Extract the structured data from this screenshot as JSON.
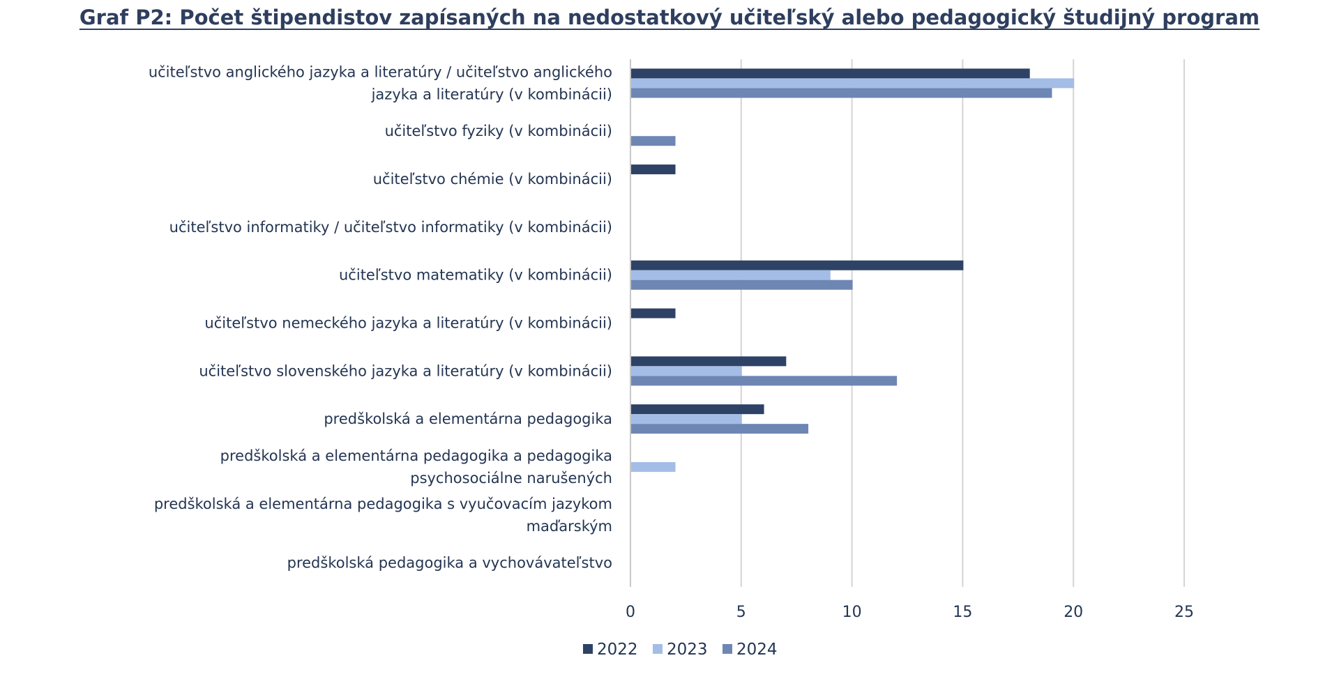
{
  "chart_data": {
    "type": "bar",
    "orientation": "horizontal",
    "title": "Graf P2: Počet štipendistov zapísaných na nedostatkový učiteľský alebo pedagogický študijný program",
    "categories": [
      [
        "učiteľstvo anglického jazyka a literatúry / učiteľstvo anglického",
        "jazyka a literatúry (v kombinácii)"
      ],
      [
        "učiteľstvo fyziky (v kombinácii)"
      ],
      [
        "učiteľstvo chémie (v kombinácii)"
      ],
      [
        "učiteľstvo informatiky / učiteľstvo informatiky (v kombinácii)"
      ],
      [
        "učiteľstvo matematiky (v kombinácii)"
      ],
      [
        "učiteľstvo nemeckého jazyka a literatúry (v kombinácii)"
      ],
      [
        "učiteľstvo slovenského jazyka a literatúry (v kombinácii)"
      ],
      [
        "predškolská a elementárna pedagogika"
      ],
      [
        "predškolská a elementárna pedagogika a pedagogika",
        "psychosociálne narušených"
      ],
      [
        "predškolská a elementárna pedagogika s vyučovacím jazykom",
        "maďarským"
      ],
      [
        "predškolská pedagogika a vychovávateľstvo"
      ]
    ],
    "series": [
      {
        "name": "2022",
        "color": "#2e4266",
        "values": [
          18,
          0,
          2,
          0,
          15,
          2,
          7,
          6,
          0,
          0,
          0
        ]
      },
      {
        "name": "2023",
        "color": "#a4bde6",
        "values": [
          20,
          0,
          0,
          0,
          9,
          0,
          5,
          5,
          2,
          0,
          0
        ]
      },
      {
        "name": "2024",
        "color": "#6e86b4",
        "values": [
          19,
          2,
          0,
          0,
          10,
          0,
          12,
          8,
          0,
          0,
          0
        ]
      }
    ],
    "xlim": [
      0,
      25
    ],
    "xticks": [
      0,
      5,
      10,
      15,
      20,
      25
    ],
    "xlabel": "",
    "ylabel": "",
    "grid": "vertical",
    "legend_position": "bottom"
  }
}
